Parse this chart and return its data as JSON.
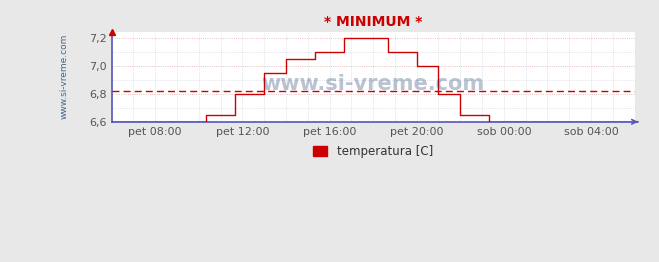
{
  "title": "* MINIMUM *",
  "title_color": "#cc0000",
  "title_fontsize": 10,
  "ylabel_text": "www.si-vreme.com",
  "legend_label": "temperatura [C]",
  "legend_color": "#cc0000",
  "background_color": "#e8e8e8",
  "plot_bg_color": "#ffffff",
  "grid_color": "#ddaaaa",
  "grid_color2": "#ccccdd",
  "axis_color": "#5555bb",
  "ylim": [
    6.6,
    7.25
  ],
  "yticks": [
    6.6,
    6.8,
    7.0,
    7.2
  ],
  "ytick_labels": [
    "6,6",
    "6,8",
    "7,0",
    "7,2"
  ],
  "avg_line_y": 6.82,
  "avg_line_color": "#cc0000",
  "line_color": "#cc0000",
  "xtick_labels": [
    "pet 08:00",
    "pet 12:00",
    "pet 16:00",
    "pet 20:00",
    "sob 00:00",
    "sob 04:00"
  ],
  "watermark": "www.si-vreme.com",
  "xlim": [
    0,
    72
  ],
  "xtick_positions": [
    6,
    18,
    30,
    42,
    54,
    66
  ],
  "steps": [
    [
      0,
      6.6
    ],
    [
      13,
      6.6
    ],
    [
      13,
      6.65
    ],
    [
      17,
      6.65
    ],
    [
      17,
      6.8
    ],
    [
      21,
      6.8
    ],
    [
      21,
      6.95
    ],
    [
      24,
      6.95
    ],
    [
      24,
      7.05
    ],
    [
      28,
      7.05
    ],
    [
      28,
      7.1
    ],
    [
      32,
      7.1
    ],
    [
      32,
      7.2
    ],
    [
      38,
      7.2
    ],
    [
      38,
      7.1
    ],
    [
      42,
      7.1
    ],
    [
      42,
      7.0
    ],
    [
      45,
      7.0
    ],
    [
      45,
      6.8
    ],
    [
      48,
      6.8
    ],
    [
      48,
      6.65
    ],
    [
      52,
      6.65
    ],
    [
      52,
      6.6
    ],
    [
      72,
      6.6
    ]
  ]
}
